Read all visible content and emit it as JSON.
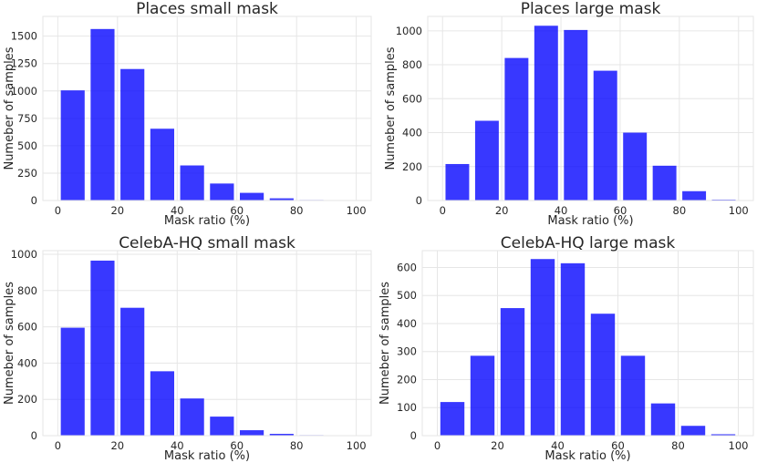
{
  "chart_data": [
    {
      "type": "bar",
      "title": "Places small mask",
      "xlabel": "Mask ratio (%)",
      "ylabel": "Numeber of samples",
      "x": [
        5,
        15,
        25,
        35,
        45,
        55,
        65,
        75,
        85,
        95
      ],
      "values": [
        1005,
        1565,
        1200,
        655,
        320,
        155,
        70,
        20,
        5,
        0
      ],
      "xlim": [
        -5,
        105
      ],
      "ylim": [
        0,
        1680
      ],
      "xticks": [
        0,
        20,
        40,
        60,
        80,
        100
      ],
      "xtick_labels": [
        "0",
        "20",
        "40",
        "60",
        "80",
        "100"
      ],
      "yticks": [
        0,
        250,
        500,
        750,
        1000,
        1250,
        1500
      ],
      "ytick_labels": [
        "0",
        "250",
        "500",
        "750",
        "1000",
        "1250",
        "1500"
      ],
      "grid": true,
      "color": "#0000ff"
    },
    {
      "type": "bar",
      "title": "Places large mask",
      "xlabel": "Mask ratio (%)",
      "ylabel": "Numeber of samples",
      "x": [
        5,
        15,
        25,
        35,
        45,
        55,
        65,
        75,
        85,
        95
      ],
      "values": [
        215,
        470,
        840,
        1030,
        1005,
        765,
        400,
        205,
        55,
        5
      ],
      "xlim": [
        -5,
        105
      ],
      "ylim": [
        0,
        1085
      ],
      "xticks": [
        0,
        20,
        40,
        60,
        80,
        100
      ],
      "xtick_labels": [
        "0",
        "20",
        "40",
        "60",
        "80",
        "100"
      ],
      "yticks": [
        0,
        200,
        400,
        600,
        800,
        1000
      ],
      "ytick_labels": [
        "0",
        "200",
        "400",
        "600",
        "800",
        "1000"
      ],
      "grid": true,
      "color": "#0000ff"
    },
    {
      "type": "bar",
      "title": "CelebA-HQ small mask",
      "xlabel": "Mask ratio (%)",
      "ylabel": "Numeber of samples",
      "x": [
        5,
        15,
        25,
        35,
        45,
        55,
        65,
        75,
        85,
        95
      ],
      "values": [
        595,
        965,
        705,
        355,
        205,
        105,
        30,
        10,
        3,
        2
      ],
      "xlim": [
        -5,
        105
      ],
      "ylim": [
        0,
        1020
      ],
      "xticks": [
        0,
        20,
        40,
        60,
        80,
        100
      ],
      "xtick_labels": [
        "0",
        "20",
        "40",
        "60",
        "80",
        "100"
      ],
      "yticks": [
        0,
        200,
        400,
        600,
        800,
        1000
      ],
      "ytick_labels": [
        "0",
        "200",
        "400",
        "600",
        "800",
        "1000"
      ],
      "grid": true,
      "color": "#0000ff"
    },
    {
      "type": "bar",
      "title": "CelebA-HQ large mask",
      "xlabel": "Mask ratio (%)",
      "ylabel": "Numeber of samples",
      "x": [
        5,
        15,
        25,
        35,
        45,
        55,
        65,
        75,
        85,
        95
      ],
      "values": [
        120,
        285,
        455,
        630,
        615,
        435,
        285,
        115,
        35,
        5
      ],
      "xlim": [
        -5,
        105
      ],
      "ylim": [
        0,
        660
      ],
      "xticks": [
        0,
        20,
        40,
        60,
        80,
        100
      ],
      "xtick_labels": [
        "0",
        "20",
        "40",
        "60",
        "80",
        "100"
      ],
      "yticks": [
        0,
        100,
        200,
        300,
        400,
        500,
        600
      ],
      "ytick_labels": [
        "0",
        "100",
        "200",
        "300",
        "400",
        "500",
        "600"
      ],
      "grid": true,
      "color": "#0000ff"
    }
  ]
}
